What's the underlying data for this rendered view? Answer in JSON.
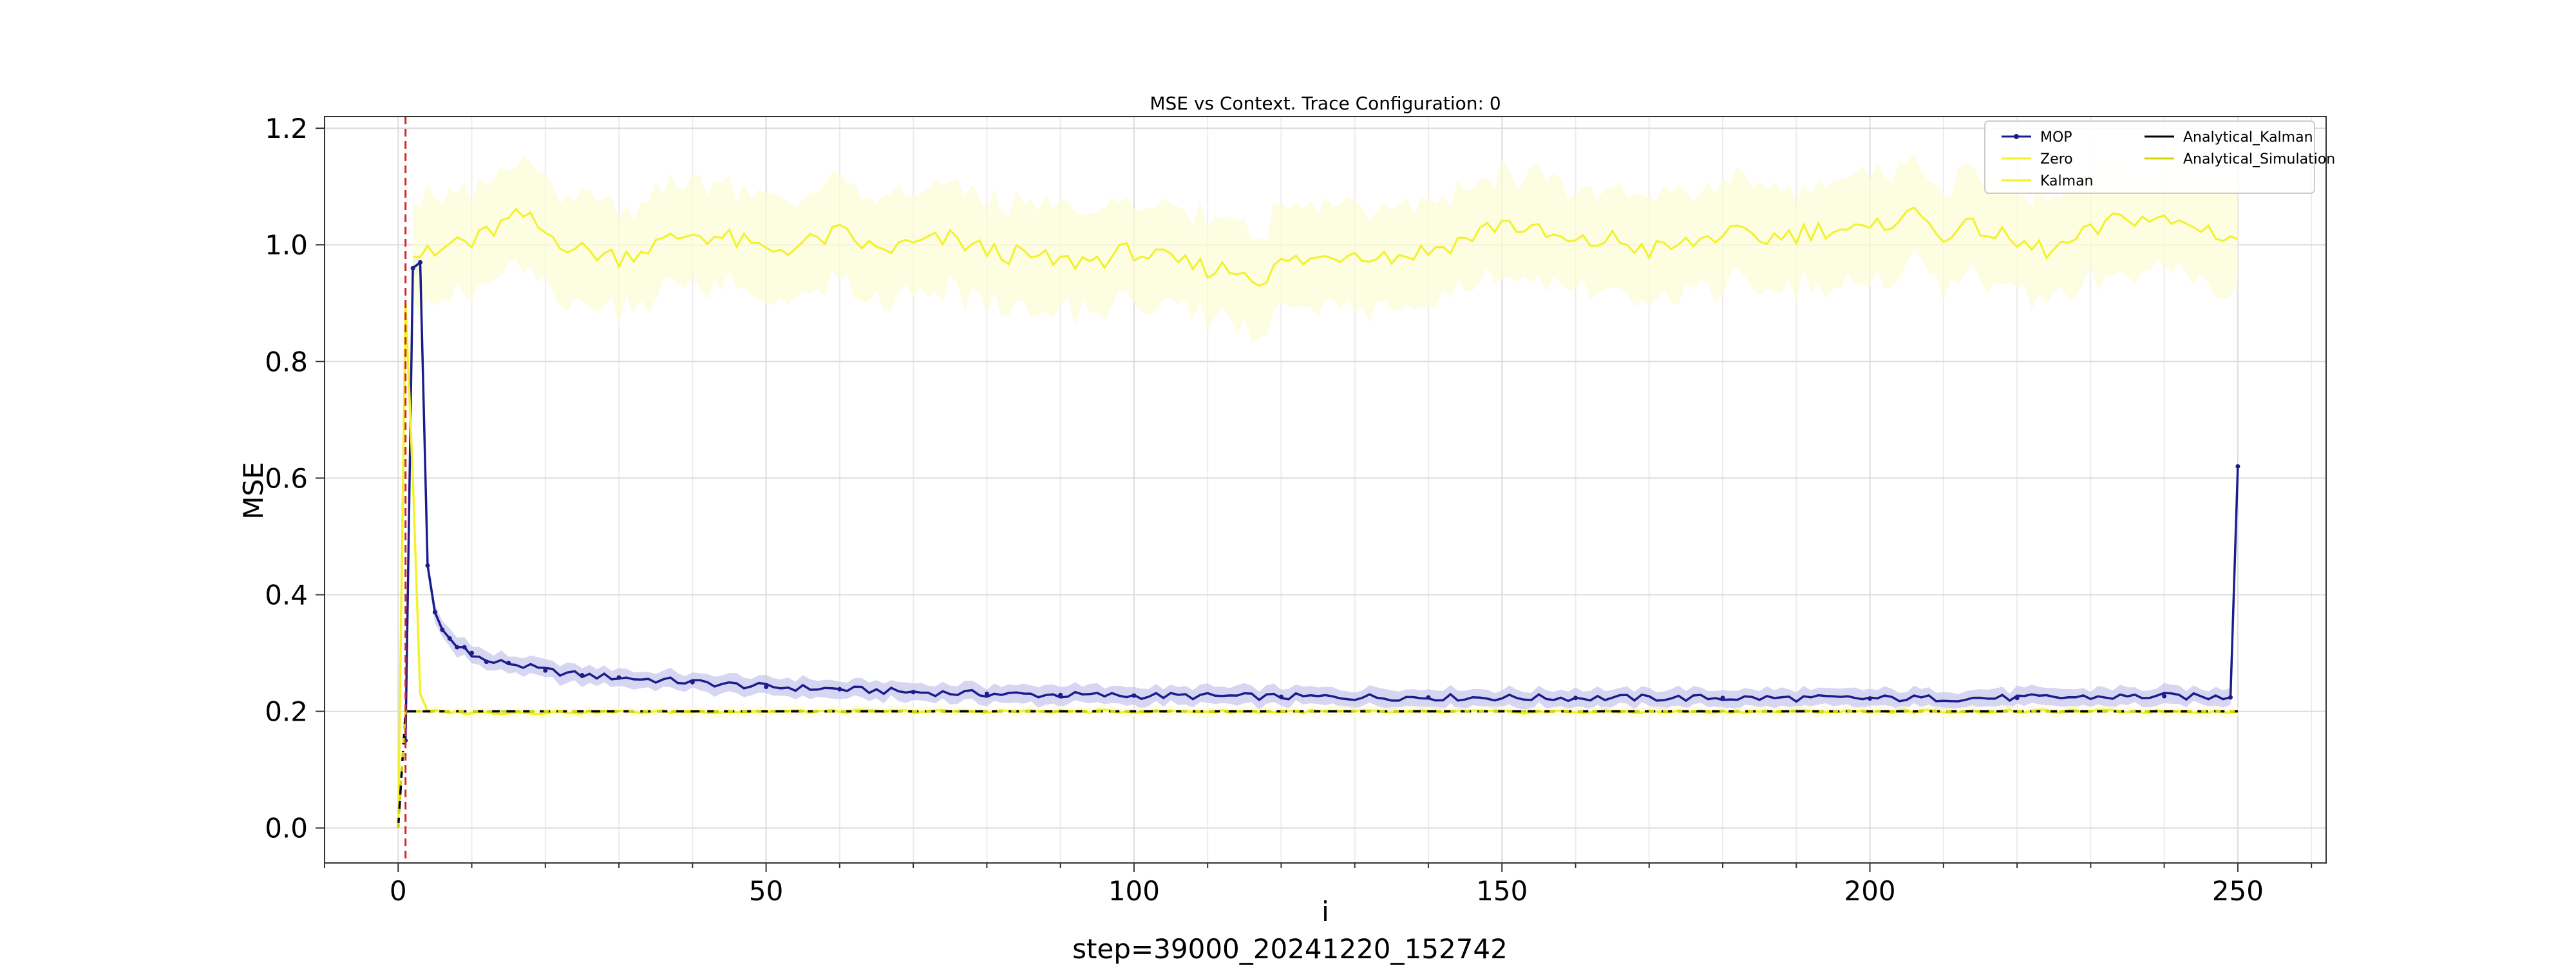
{
  "chart_data": {
    "type": "line",
    "title": "MSE vs Context. Trace Configuration: 0",
    "xlabel": "i",
    "ylabel": "MSE",
    "footer": "step=39000_20241220_152742",
    "xlim": [
      -10,
      262
    ],
    "ylim": [
      -0.06,
      1.22
    ],
    "xticks": [
      0,
      50,
      100,
      150,
      200,
      250
    ],
    "yticks": [
      0.0,
      0.2,
      0.4,
      0.6,
      0.8,
      1.0,
      1.2
    ],
    "ytick_labels": [
      "0.0",
      "0.2",
      "0.4",
      "0.6",
      "0.8",
      "1.0",
      "1.2"
    ],
    "grid": true,
    "vline": {
      "x": 1,
      "color": "#d62728",
      "style": "dashed"
    },
    "legend": {
      "placement": "top-right",
      "entries": [
        "MOP",
        "Zero",
        "Kalman",
        "Analytical_Kalman",
        "Analytical_Simulation"
      ]
    },
    "series": [
      {
        "name": "MOP",
        "color": "#1c1c8c",
        "band_color": "#c5c5ee",
        "points": [
          [
            1,
            0.15
          ],
          [
            2,
            0.96
          ],
          [
            3,
            0.97
          ],
          [
            4,
            0.45
          ],
          [
            5,
            0.37
          ],
          [
            6,
            0.34
          ],
          [
            7,
            0.325
          ],
          [
            8,
            0.31
          ],
          [
            9,
            0.31
          ],
          [
            10,
            0.3
          ],
          [
            12,
            0.285
          ],
          [
            15,
            0.283
          ],
          [
            20,
            0.27
          ],
          [
            25,
            0.262
          ],
          [
            30,
            0.258
          ],
          [
            40,
            0.25
          ],
          [
            50,
            0.242
          ],
          [
            60,
            0.238
          ],
          [
            70,
            0.233
          ],
          [
            80,
            0.23
          ],
          [
            90,
            0.228
          ],
          [
            100,
            0.227
          ],
          [
            120,
            0.225
          ],
          [
            140,
            0.224
          ],
          [
            160,
            0.223
          ],
          [
            180,
            0.223
          ],
          [
            200,
            0.222
          ],
          [
            220,
            0.223
          ],
          [
            240,
            0.226
          ],
          [
            249,
            0.224
          ],
          [
            250,
            0.62
          ]
        ]
      },
      {
        "name": "Zero",
        "color": "#f2f22a",
        "band_color": "#fcfcd6",
        "points": [
          [
            2,
            0.98
          ],
          [
            3,
            0.985
          ],
          [
            5,
            0.98
          ],
          [
            8,
            1.01
          ],
          [
            10,
            1.0
          ],
          [
            12,
            1.02
          ],
          [
            15,
            1.04
          ],
          [
            17,
            1.05
          ],
          [
            20,
            1.02
          ],
          [
            25,
            0.99
          ],
          [
            30,
            0.98
          ],
          [
            35,
            1.0
          ],
          [
            40,
            1.02
          ],
          [
            45,
            1.01
          ],
          [
            50,
            0.99
          ],
          [
            55,
            1.0
          ],
          [
            60,
            1.02
          ],
          [
            65,
            0.99
          ],
          [
            70,
            1.0
          ],
          [
            75,
            1.01
          ],
          [
            80,
            0.99
          ],
          [
            85,
            0.98
          ],
          [
            90,
            0.97
          ],
          [
            95,
            0.975
          ],
          [
            100,
            0.99
          ],
          [
            105,
            0.97
          ],
          [
            110,
            0.96
          ],
          [
            115,
            0.955
          ],
          [
            118,
            0.94
          ],
          [
            120,
            0.97
          ],
          [
            125,
            0.975
          ],
          [
            130,
            0.99
          ],
          [
            135,
            0.98
          ],
          [
            140,
            0.99
          ],
          [
            145,
            1.01
          ],
          [
            150,
            1.04
          ],
          [
            155,
            1.02
          ],
          [
            160,
            1.0
          ],
          [
            165,
            1.01
          ],
          [
            170,
            0.99
          ],
          [
            175,
            1.0
          ],
          [
            180,
            1.02
          ],
          [
            185,
            1.01
          ],
          [
            190,
            1.02
          ],
          [
            195,
            1.03
          ],
          [
            200,
            1.02
          ],
          [
            205,
            1.06
          ],
          [
            210,
            1.02
          ],
          [
            215,
            1.03
          ],
          [
            220,
            1.0
          ],
          [
            225,
            0.99
          ],
          [
            230,
            1.02
          ],
          [
            235,
            1.05
          ],
          [
            240,
            1.04
          ],
          [
            245,
            1.03
          ],
          [
            250,
            1.01
          ]
        ]
      },
      {
        "name": "Kalman",
        "color": "#f2f22a",
        "band_color": "#fcfcd6",
        "points": [
          [
            0,
            0.0
          ],
          [
            1,
            0.9
          ],
          [
            2,
            0.6
          ],
          [
            3,
            0.23
          ],
          [
            4,
            0.2
          ],
          [
            10,
            0.198
          ],
          [
            50,
            0.2
          ],
          [
            100,
            0.2
          ],
          [
            150,
            0.199
          ],
          [
            200,
            0.2
          ],
          [
            250,
            0.2
          ]
        ]
      },
      {
        "name": "Analytical_Kalman",
        "color": "#000000",
        "band_color": "",
        "points": [
          [
            0,
            0.0
          ],
          [
            1,
            0.2
          ],
          [
            250,
            0.2
          ]
        ]
      },
      {
        "name": "Analytical_Simulation",
        "color": "#d4d400",
        "band_color": "",
        "points": [
          [
            0,
            0.0
          ],
          [
            1,
            0.2
          ],
          [
            250,
            0.2
          ]
        ]
      }
    ]
  }
}
